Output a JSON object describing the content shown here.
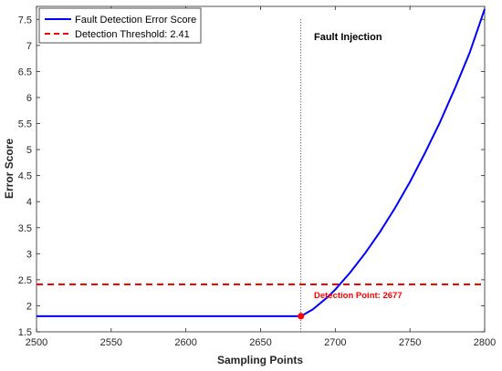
{
  "chart_data": {
    "type": "line",
    "xlabel": "Sampling Points",
    "ylabel": "Error Score",
    "xlim": [
      2500,
      2800
    ],
    "ylim": [
      1.5,
      7.75
    ],
    "xticks": [
      2500,
      2550,
      2600,
      2650,
      2700,
      2750,
      2800
    ],
    "yticks": [
      1.5,
      2,
      2.5,
      3,
      3.5,
      4,
      4.5,
      5,
      5.5,
      6,
      6.5,
      7,
      7.5
    ],
    "grid": false,
    "legend_position": "top-left",
    "series": [
      {
        "name": "Fault Detection Error Score",
        "color": "#0000ff",
        "style": "solid",
        "x": [
          2500,
          2550,
          2600,
          2650,
          2677,
          2685,
          2695,
          2700,
          2710,
          2720,
          2730,
          2740,
          2750,
          2760,
          2770,
          2780,
          2790,
          2800
        ],
        "y": [
          1.8,
          1.8,
          1.8,
          1.8,
          1.8,
          1.93,
          2.17,
          2.31,
          2.64,
          3.01,
          3.42,
          3.88,
          4.38,
          4.93,
          5.52,
          6.17,
          6.86,
          7.7
        ]
      },
      {
        "name": "Detection Threshold: 2.41",
        "color": "#ff0000",
        "style": "dashed",
        "x": [
          2500,
          2800
        ],
        "y": [
          2.41,
          2.41
        ]
      }
    ],
    "fault_injection": {
      "x": 2677,
      "label": "Fault Injection"
    },
    "detection_point": {
      "x": 2677,
      "y": 1.8,
      "label": "Detection Point: 2677",
      "color": "#ff0000"
    }
  }
}
